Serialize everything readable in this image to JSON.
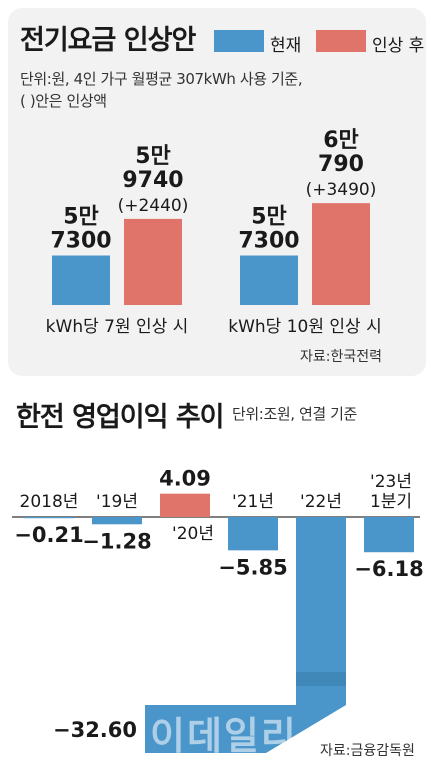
{
  "panel1": {
    "title": "전기요금 인상안",
    "legend": [
      {
        "label": "현재",
        "color": "#4a95c9"
      },
      {
        "label": "인상 후",
        "color": "#e0736a"
      }
    ],
    "note_line1": "단위:원, 4인 가구 월평균 307kWh 사용 기준,",
    "note_line2": "( )안은 인상액",
    "source": "자료:한국전력"
  },
  "panel2": {
    "title": "한전 영업이익 추이",
    "unit": "단위:조원, 연결 기준",
    "source": "자료:금융감독원",
    "watermark": "이데일리"
  },
  "chart_data": [
    {
      "type": "bar",
      "title": "전기요금 인상안",
      "categories": [
        "kWh당 7원 인상 시",
        "kWh당 10원 인상 시"
      ],
      "series": [
        {
          "name": "현재",
          "values": [
            57300,
            57300
          ],
          "labels": [
            [
              "5만",
              "7300"
            ],
            [
              "5만",
              "7300"
            ]
          ],
          "color": "#4a95c9"
        },
        {
          "name": "인상 후",
          "values": [
            59740,
            60790
          ],
          "labels": [
            [
              "5만",
              "9740",
              "(+2440)"
            ],
            [
              "6만",
              "790",
              "(+3490)"
            ]
          ],
          "color": "#e0736a"
        }
      ],
      "increase": [
        2440,
        3490
      ]
    },
    {
      "type": "bar",
      "title": "한전 영업이익 추이",
      "categories": [
        "2018년",
        "'19년",
        "'20년",
        "'21년",
        "'22년",
        "'23년 1분기"
      ],
      "values": [
        -0.21,
        -1.28,
        4.09,
        -5.85,
        -32.6,
        -6.18
      ],
      "value_labels": [
        "−0.21",
        "−1.28",
        "4.09",
        "−5.85",
        "−32.60",
        "−6.18"
      ],
      "colors": {
        "negative": "#4a95c9",
        "positive": "#e0736a"
      }
    }
  ]
}
